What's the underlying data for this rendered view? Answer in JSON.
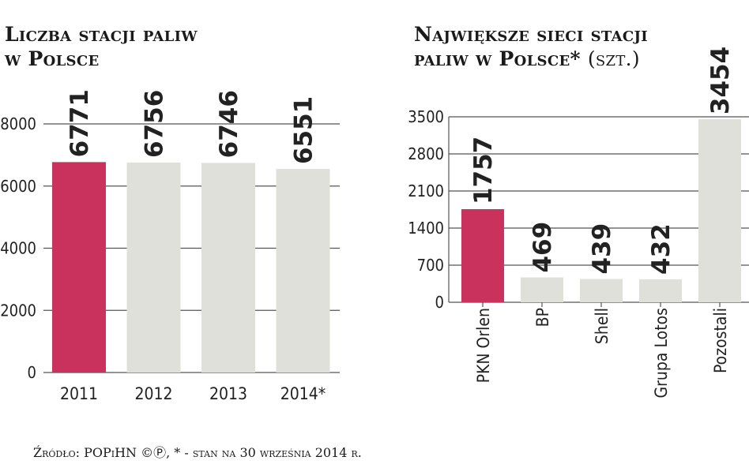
{
  "source_note": "Źródło: POPiHN ©Ⓟ, * - stan na 30 września 2014 r.",
  "colors": {
    "highlight": "#c8325c",
    "bar": "#e0e0da",
    "grid": "#555555"
  },
  "chart_data": [
    {
      "type": "bar",
      "title_lines": [
        "Liczba stacji paliw",
        "w Polsce"
      ],
      "categories": [
        "2011",
        "2012",
        "2013",
        "2014*"
      ],
      "values": [
        6771,
        6756,
        6746,
        6551
      ],
      "value_labels": [
        "6771",
        "6756",
        "6746",
        "6551"
      ],
      "highlight": [
        0
      ],
      "y_ticks": [
        "8000",
        "6000",
        "4000",
        "2000",
        "0"
      ],
      "ylim": [
        0,
        8000
      ],
      "grid": true
    },
    {
      "type": "bar",
      "title_lines": [
        "Największe sieci stacji",
        "paliw w Polsce*"
      ],
      "title_unit": "(szt.)",
      "categories": [
        "PKN Orlen",
        "BP",
        "Shell",
        "Grupa Lotos",
        "Pozostali"
      ],
      "values": [
        1757,
        469,
        439,
        432,
        3454
      ],
      "value_labels": [
        "1757",
        "469",
        "439",
        "432",
        "3454"
      ],
      "highlight": [
        0
      ],
      "y_ticks": [
        "3500",
        "2800",
        "2100",
        "1400",
        "700",
        "0"
      ],
      "ylim": [
        0,
        3500
      ],
      "grid": true
    }
  ]
}
